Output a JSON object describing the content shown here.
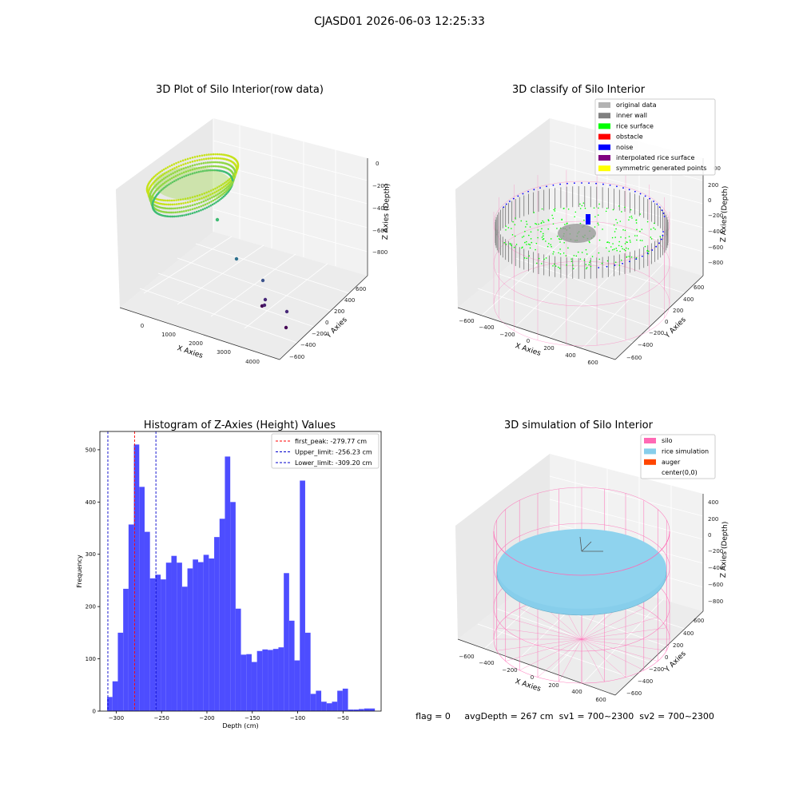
{
  "figure": {
    "suptitle": "CJASD01 2026-06-03 12:25:33",
    "status_line": "flag = 0     avgDepth = 267 cm  sv1 = 700~2300  sv2 = 700~2300"
  },
  "panels": {
    "raw": {
      "title": "3D Plot of Silo Interior(row data)",
      "xlabel": "X Axies",
      "ylabel": "Y Axies",
      "zlabel": "Z Axies (Depth)",
      "xticks": [
        "0",
        "1000",
        "2000",
        "3000",
        "4000"
      ],
      "yticks": [
        "600",
        "400",
        "200",
        "0",
        "−200",
        "−400",
        "−600"
      ],
      "zticks": [
        "0",
        "−200",
        "−400",
        "−600",
        "−800"
      ]
    },
    "classify": {
      "title": "3D classify of Silo Interior",
      "xlabel": "X Axies",
      "ylabel": "Y Axies",
      "zlabel": "Z Axies (Depth)",
      "xticks": [
        "−600",
        "−400",
        "−200",
        "0",
        "200",
        "400",
        "600"
      ],
      "yticks": [
        "600",
        "400",
        "200",
        "0",
        "−200",
        "−400",
        "−600"
      ],
      "zticks": [
        "200",
        "0",
        "−200",
        "−400",
        "−600",
        "−800"
      ],
      "legend": [
        {
          "label": "original data",
          "color": "#b3b3b3"
        },
        {
          "label": "inner wall",
          "color": "#808080"
        },
        {
          "label": "rice surface",
          "color": "#00ff00"
        },
        {
          "label": "obstacle",
          "color": "#ff0000"
        },
        {
          "label": "noise",
          "color": "#0000ff"
        },
        {
          "label": "interpolated rice surface",
          "color": "#800080"
        },
        {
          "label": "symmetric generated points",
          "color": "#ffff00"
        }
      ],
      "extra_tick": "00"
    },
    "simulation": {
      "title": "3D simulation of Silo Interior",
      "xlabel": "X Axies",
      "ylabel": "Y Axies",
      "zlabel": "Z Axies (Depth)",
      "xticks": [
        "−600",
        "−400",
        "−200",
        "0",
        "200",
        "400",
        "600"
      ],
      "yticks": [
        "600",
        "400",
        "200",
        "0",
        "−200",
        "−400",
        "−600"
      ],
      "zticks": [
        "400",
        "200",
        "0",
        "−200",
        "−400",
        "−600",
        "−800"
      ],
      "legend": [
        {
          "label": "silo",
          "color": "#ff69b4"
        },
        {
          "label": "rice simulation",
          "color": "#87ceeb"
        },
        {
          "label": "auger",
          "color": "#ff4500"
        },
        {
          "label": "center(0,0)",
          "color": ""
        }
      ]
    }
  },
  "chart_data": {
    "type": "bar",
    "title": "Histogram of Z-Axies (Height) Values",
    "xlabel": "Depth (cm)",
    "ylabel": "Frequency",
    "xlim": [
      -318,
      -8
    ],
    "ylim": [
      0,
      535
    ],
    "bar_color": "#4d4dff",
    "bin_width": 5.9,
    "bin_starts": [
      -310.0,
      -304.1,
      -298.2,
      -292.3,
      -286.4,
      -280.5,
      -274.6,
      -268.7,
      -262.8,
      -256.9,
      -251.0,
      -245.1,
      -239.2,
      -233.3,
      -227.4,
      -221.5,
      -215.6,
      -209.7,
      -203.8,
      -197.9,
      -192.0,
      -186.1,
      -180.2,
      -174.3,
      -168.4,
      -162.5,
      -156.6,
      -150.7,
      -144.8,
      -138.9,
      -133.0,
      -127.1,
      -121.2,
      -115.3,
      -109.4,
      -103.5,
      -97.6,
      -91.7,
      -85.8,
      -79.9,
      -74.0,
      -68.1,
      -62.2,
      -56.3,
      -50.4,
      -44.5,
      -38.6,
      -32.7,
      -26.7,
      -20.8
    ],
    "values": [
      27,
      57,
      150,
      234,
      357,
      510,
      429,
      343,
      254,
      261,
      252,
      284,
      297,
      284,
      238,
      273,
      290,
      285,
      299,
      292,
      333,
      368,
      487,
      400,
      196,
      108,
      109,
      94,
      115,
      118,
      117,
      119,
      122,
      264,
      173,
      97,
      441,
      150,
      33,
      39,
      18,
      15,
      18,
      39,
      43,
      3,
      3,
      4,
      5,
      5
    ],
    "xticks": [
      -300,
      -250,
      -200,
      -150,
      -100,
      -50
    ],
    "yticks": [
      0,
      100,
      200,
      300,
      400,
      500
    ],
    "vlines": [
      {
        "name": "first_peak: -279.77 cm",
        "x": -279.77,
        "color": "#ff0000"
      },
      {
        "name": "Upper_limit: -256.23 cm",
        "x": -256.23,
        "color": "#0000cc"
      },
      {
        "name": "Lower_limit: -309.20 cm",
        "x": -309.2,
        "color": "#0000cc"
      }
    ],
    "legend_position": "upper right",
    "grid": false
  }
}
